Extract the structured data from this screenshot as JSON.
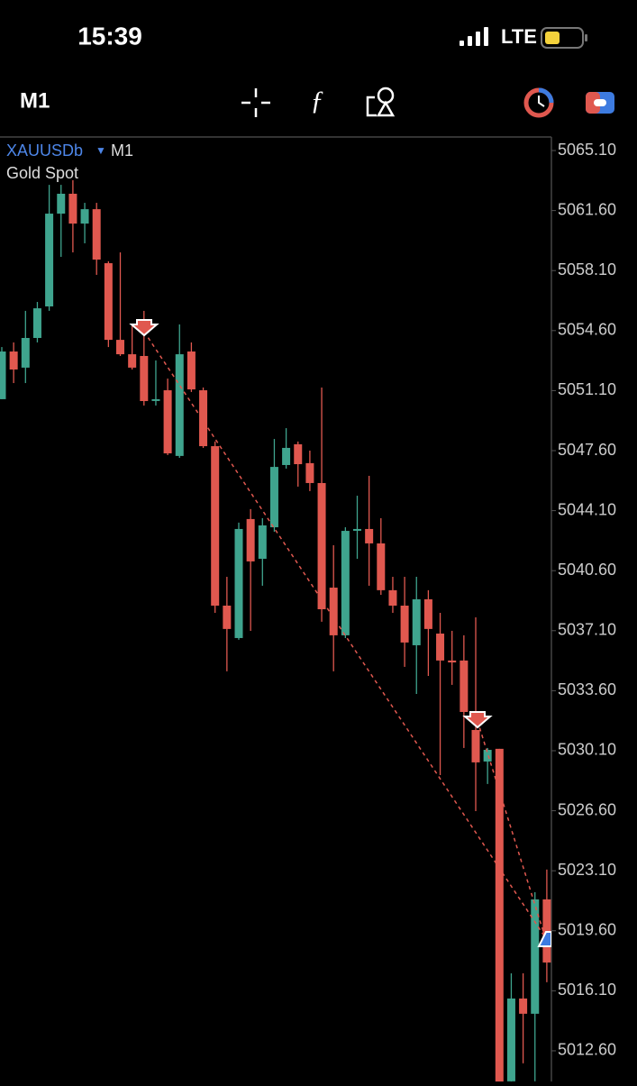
{
  "status_bar": {
    "time": "15:39",
    "network": "LTE"
  },
  "toolbar": {
    "timeframe": "M1"
  },
  "chart_data": {
    "type": "candlestick",
    "symbol": "XAUUSDb",
    "timeframe": "M1",
    "subtitle": "Gold Spot",
    "up_color": "#3fa48e",
    "down_color": "#e0584f",
    "ylim": [
      5010.81,
      5065.89
    ],
    "yticks": [
      {
        "value": 5065.1,
        "label": "5065.10"
      },
      {
        "value": 5061.6,
        "label": "5061.60"
      },
      {
        "value": 5058.1,
        "label": "5058.10"
      },
      {
        "value": 5054.6,
        "label": "5054.60"
      },
      {
        "value": 5051.1,
        "label": "5051.10"
      },
      {
        "value": 5047.6,
        "label": "5047.60"
      },
      {
        "value": 5044.1,
        "label": "5044.10"
      },
      {
        "value": 5040.6,
        "label": "5040.60"
      },
      {
        "value": 5037.1,
        "label": "5037.10"
      },
      {
        "value": 5033.6,
        "label": "5033.60"
      },
      {
        "value": 5030.1,
        "label": "5030.10"
      },
      {
        "value": 5026.6,
        "label": "5026.60"
      },
      {
        "value": 5023.1,
        "label": "5023.10"
      },
      {
        "value": 5019.6,
        "label": "5019.60"
      },
      {
        "value": 5016.1,
        "label": "5016.10"
      },
      {
        "value": 5012.6,
        "label": "5012.60"
      }
    ],
    "open": [
      5050.6,
      5053.38,
      5052.44,
      5054.17,
      5056.01,
      5061.42,
      5062.58,
      5060.84,
      5061.68,
      5058.53,
      5054.06,
      5053.22,
      5053.12,
      5050.54,
      5051.12,
      5047.29,
      5053.38,
      5051.12,
      5047.86,
      5038.56,
      5036.67,
      5043.61,
      5041.29,
      5043.13,
      5046.76,
      5047.97,
      5046.87,
      5045.71,
      5039.61,
      5036.83,
      5042.98,
      5043.03,
      5042.19,
      5039.46,
      5038.56,
      5036.25,
      5038.93,
      5036.93,
      5035.36,
      5035.36,
      5031.31,
      5029.47,
      5030.21,
      5010.82,
      5015.65,
      5014.76,
      5021.43
    ],
    "high": [
      5053.64,
      5053.91,
      5055.75,
      5056.27,
      5063.1,
      5063.1,
      5063.37,
      5062.05,
      5062.05,
      5058.64,
      5059.16,
      5054.96,
      5055.75,
      5052.86,
      5051.8,
      5054.96,
      5053.91,
      5051.28,
      5048.13,
      5040.24,
      5043.4,
      5044.19,
      5043.66,
      5048.28,
      5048.91,
      5048.13,
      5047.6,
      5051.28,
      5042.08,
      5043.13,
      5044.97,
      5046.13,
      5043.66,
      5040.24,
      5040.24,
      5040.24,
      5039.46,
      5038.14,
      5037.09,
      5036.83,
      5037.88,
      5030.26,
      5030.21,
      5017.12,
      5017.12,
      5021.85,
      5023.17
    ],
    "low": [
      5050.6,
      5051.54,
      5051.54,
      5053.91,
      5055.75,
      5058.9,
      5059.16,
      5059.69,
      5057.85,
      5053.64,
      5053.12,
      5052.33,
      5050.23,
      5050.23,
      5047.34,
      5047.18,
      5051.02,
      5047.76,
      5038.14,
      5034.73,
      5036.57,
      5037.09,
      5039.72,
      5042.87,
      5046.55,
      5045.5,
      5045.24,
      5037.62,
      5034.73,
      5036.67,
      5041.29,
      5039.72,
      5039.19,
      5038.14,
      5034.99,
      5033.41,
      5034.46,
      5028.68,
      5033.94,
      5030.26,
      5026.58,
      5028.16,
      5010.29,
      5010.29,
      5011.87,
      5010.82,
      5016.6
    ],
    "close": [
      5053.38,
      5052.33,
      5054.17,
      5055.9,
      5061.42,
      5062.58,
      5060.84,
      5061.68,
      5058.74,
      5054.06,
      5053.22,
      5052.44,
      5050.49,
      5050.6,
      5047.44,
      5053.22,
      5051.17,
      5047.86,
      5038.56,
      5037.2,
      5043.03,
      5041.14,
      5043.24,
      5046.65,
      5047.76,
      5046.81,
      5045.71,
      5038.35,
      5036.83,
      5042.92,
      5043.03,
      5042.19,
      5039.46,
      5038.56,
      5036.41,
      5038.93,
      5037.2,
      5035.36,
      5035.25,
      5032.36,
      5029.42,
      5030.15,
      5010.29,
      5015.65,
      5014.76,
      5021.43,
      5017.75
    ]
  }
}
